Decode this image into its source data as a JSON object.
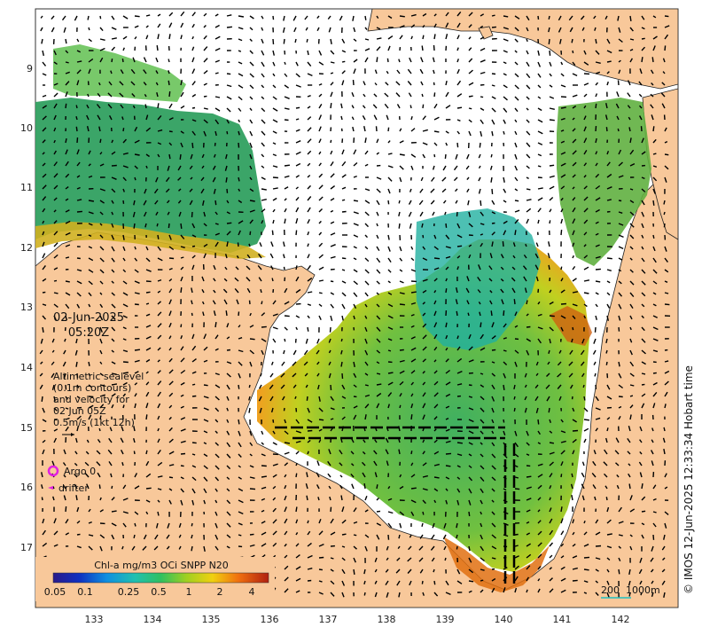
{
  "map": {
    "date": "02-Jun-2025",
    "time": "05:20Z",
    "legend_lines": [
      "Altimetric sealevel",
      "(0.1m contours)",
      "and velocity for",
      "02 Jun 05Z",
      "0.5m/s (1kt 12h)"
    ],
    "argo_label": "Argo 0",
    "drifter_label": "drifter",
    "copyright": "© IMOS 12-Jun-2025 12:33:34 Hobart time",
    "scale_label_left": "200",
    "scale_label_right": "1000m"
  },
  "colorbar": {
    "title": "Chl-a mg/m3 OCi SNPP N20",
    "ticks": [
      "0.05",
      "0.1",
      "0.25",
      "0.5",
      "1",
      "2",
      "4"
    ]
  },
  "axes": {
    "x_ticks": [
      "133",
      "134",
      "135",
      "136",
      "137",
      "138",
      "139",
      "140",
      "141",
      "142"
    ],
    "y_ticks": [
      "9",
      "10",
      "11",
      "12",
      "13",
      "14",
      "15",
      "16",
      "17"
    ]
  },
  "colors": {
    "land": "#f8c89a",
    "no_data": "#ffffff",
    "argo": "#e020e0",
    "drifter": "#e020e0",
    "scale_line": "#20c0c0"
  }
}
